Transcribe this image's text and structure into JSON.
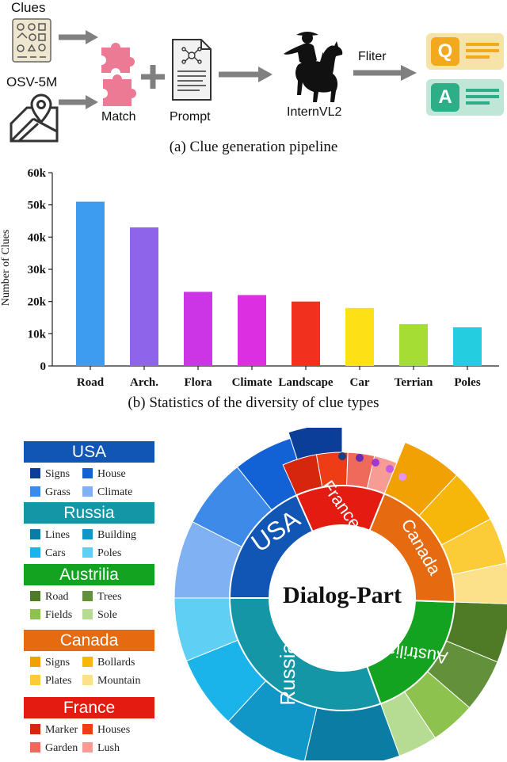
{
  "pipeline": {
    "caption": "(a) Clue generation pipeline",
    "labels": {
      "clues": "Clues",
      "osv": "OSV-5M",
      "match": "Match",
      "prompt": "Prompt",
      "internvl": "InternVL2",
      "filter": "Fliter"
    },
    "qa": {
      "q": "Q",
      "a": "A"
    },
    "colors": {
      "puzzle": "#ec7a94",
      "arrow": "#808080",
      "q_bg": "#f4d67a",
      "q_fg": "#f2a91d",
      "a_bg": "#a9ddc9",
      "a_fg": "#2eae87"
    }
  },
  "chart_data": [
    {
      "type": "bar",
      "title": "",
      "xlabel": "",
      "ylabel": "Number of Clues",
      "ylim": [
        0,
        60000
      ],
      "yticks": [
        0,
        10000,
        20000,
        30000,
        40000,
        50000,
        60000
      ],
      "ytick_labels": [
        "0",
        "10k",
        "20k",
        "30k",
        "40k",
        "50k",
        "60k"
      ],
      "categories": [
        "Road",
        "Arch.",
        "Flora",
        "Climate",
        "Landscape",
        "Car",
        "Terrian",
        "Poles"
      ],
      "values": [
        51000,
        43000,
        23000,
        22000,
        20000,
        18000,
        13000,
        12000
      ],
      "colors": [
        "#3d9bf0",
        "#8d64ea",
        "#cc35e6",
        "#dc2fe2",
        "#f2301e",
        "#fde016",
        "#a6dd34",
        "#24cde0"
      ],
      "grid": false,
      "caption": "(b) Statistics of  the diversity of clue types"
    },
    {
      "type": "pie",
      "center_label": "Dialog-Part",
      "groups": [
        {
          "name": "USA",
          "color": "#1155b5",
          "items": [
            {
              "name": "Signs",
              "color": "#0a3e99"
            },
            {
              "name": "House",
              "color": "#1262d6"
            },
            {
              "name": "Grass",
              "color": "#3d8ae8"
            },
            {
              "name": "Climate",
              "color": "#7fb1f3"
            }
          ]
        },
        {
          "name": "Russia",
          "color": "#1596a6",
          "items": [
            {
              "name": "Lines",
              "color": "#0b7ca4"
            },
            {
              "name": "Building",
              "color": "#1196c8"
            },
            {
              "name": "Cars",
              "color": "#1ab3ea"
            },
            {
              "name": "Poles",
              "color": "#5fcff3"
            }
          ]
        },
        {
          "name": "Austrilia",
          "color": "#14a321",
          "items": [
            {
              "name": "Road",
              "color": "#4f7a26"
            },
            {
              "name": "Trees",
              "color": "#63903a"
            },
            {
              "name": "Fields",
              "color": "#8ec24f"
            },
            {
              "name": "Sole",
              "color": "#b5dc92"
            }
          ]
        },
        {
          "name": "Canada",
          "color": "#e56a10",
          "items": [
            {
              "name": "Signs",
              "color": "#f2a104"
            },
            {
              "name": "Bollards",
              "color": "#f7b60a"
            },
            {
              "name": "Plates",
              "color": "#fbcb38"
            },
            {
              "name": "Mountain",
              "color": "#fde08a"
            }
          ]
        },
        {
          "name": "France",
          "color": "#e31b10",
          "items": [
            {
              "name": "Marker",
              "color": "#d7260e"
            },
            {
              "name": "Houses",
              "color": "#ee3c16"
            },
            {
              "name": "Garden",
              "color": "#f06a5c"
            },
            {
              "name": "Lush",
              "color": "#f69c94"
            }
          ]
        }
      ],
      "dots": [
        "#1a3f7a",
        "#6a2bb5",
        "#9b3ad1",
        "#c55be2",
        "#e396ef"
      ]
    }
  ]
}
